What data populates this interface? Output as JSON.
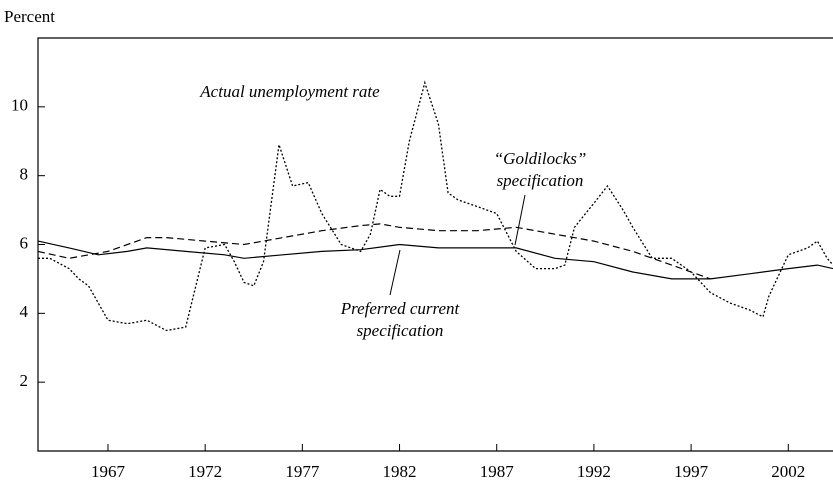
{
  "chart_data": {
    "type": "line",
    "ylabel": "Percent",
    "xlim": [
      1963.4,
      2004.3
    ],
    "ylim": [
      0,
      12
    ],
    "xticks": [
      1967,
      1972,
      1977,
      1982,
      1987,
      1992,
      1997,
      2002
    ],
    "yticks": [
      2,
      4,
      6,
      8,
      10
    ],
    "series": [
      {
        "name_lines": [
          "Actual unemployment rate"
        ],
        "color": "#000000",
        "style": "dotted",
        "x": [
          1963.4,
          1964,
          1965,
          1965.5,
          1966,
          1967,
          1968,
          1969,
          1970,
          1971,
          1972,
          1973,
          1973.5,
          1974,
          1974.5,
          1975,
          1975.8,
          1976.5,
          1977.3,
          1978,
          1979,
          1980,
          1980.5,
          1981,
          1981.5,
          1982,
          1982.5,
          1983.3,
          1984,
          1984.5,
          1985,
          1986,
          1987,
          1988,
          1989,
          1990,
          1990.5,
          1991,
          1992,
          1992.7,
          1993.5,
          1994,
          1995,
          1996,
          1997,
          1998,
          1999,
          2000,
          2000.7,
          2001,
          2002,
          2003,
          2003.5,
          2004,
          2004.3
        ],
        "values": [
          5.6,
          5.6,
          5.3,
          5.0,
          4.8,
          3.8,
          3.7,
          3.8,
          3.5,
          3.6,
          5.9,
          6.0,
          5.5,
          4.9,
          4.8,
          5.5,
          8.9,
          7.7,
          7.8,
          6.9,
          6.0,
          5.8,
          6.3,
          7.6,
          7.4,
          7.4,
          9.0,
          10.7,
          9.5,
          7.5,
          7.3,
          7.1,
          6.9,
          5.8,
          5.3,
          5.3,
          5.4,
          6.5,
          7.2,
          7.7,
          7.0,
          6.5,
          5.6,
          5.6,
          5.2,
          4.6,
          4.3,
          4.1,
          3.9,
          4.5,
          5.7,
          5.9,
          6.1,
          5.6,
          5.4
        ]
      },
      {
        "name_lines": [
          "“Goldilocks”",
          "specification"
        ],
        "color": "#000000",
        "style": "dashed",
        "x": [
          1963.4,
          1965,
          1967,
          1969,
          1970,
          1972,
          1974,
          1976,
          1978,
          1980,
          1981,
          1982,
          1984,
          1986,
          1988,
          1990,
          1992,
          1994,
          1996,
          1998
        ],
        "values": [
          5.8,
          5.6,
          5.8,
          6.2,
          6.2,
          6.1,
          6.0,
          6.2,
          6.4,
          6.55,
          6.6,
          6.5,
          6.4,
          6.4,
          6.5,
          6.3,
          6.1,
          5.8,
          5.4,
          5.0
        ]
      },
      {
        "name_lines": [
          "Preferred current",
          "specification"
        ],
        "color": "#000000",
        "style": "solid",
        "x": [
          1963.4,
          1965,
          1966.5,
          1968,
          1969,
          1971,
          1973,
          1974,
          1976,
          1978,
          1980,
          1982,
          1984,
          1986,
          1988,
          1990,
          1992,
          1994,
          1996,
          1998,
          2000,
          2002,
          2003.5,
          2004.3
        ],
        "values": [
          6.1,
          5.9,
          5.7,
          5.8,
          5.9,
          5.8,
          5.7,
          5.6,
          5.7,
          5.8,
          5.85,
          6.0,
          5.9,
          5.9,
          5.9,
          5.6,
          5.5,
          5.2,
          5.0,
          5.0,
          5.15,
          5.3,
          5.4,
          5.3
        ]
      }
    ]
  }
}
